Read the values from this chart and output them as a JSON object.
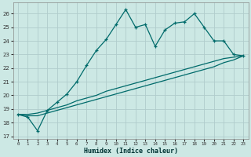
{
  "xlabel": "Humidex (Indice chaleur)",
  "background_color": "#cce8e4",
  "grid_color": "#b0cccc",
  "line_color": "#006b6b",
  "xlim": [
    -0.5,
    23.5
  ],
  "ylim": [
    16.8,
    26.8
  ],
  "yticks": [
    17,
    18,
    19,
    20,
    21,
    22,
    23,
    24,
    25,
    26
  ],
  "xticks": [
    0,
    1,
    2,
    3,
    4,
    5,
    6,
    7,
    8,
    9,
    10,
    11,
    12,
    13,
    14,
    15,
    16,
    17,
    18,
    19,
    20,
    21,
    22,
    23
  ],
  "jagged_x": [
    0,
    1,
    2,
    3,
    4,
    5,
    6,
    7,
    8,
    9,
    10,
    11,
    12,
    13,
    14,
    15,
    16,
    17,
    18,
    19,
    20,
    21,
    22,
    23
  ],
  "jagged_y": [
    18.6,
    18.4,
    17.4,
    18.9,
    19.5,
    20.1,
    21.0,
    22.2,
    23.3,
    24.1,
    25.2,
    26.3,
    25.0,
    25.2,
    23.6,
    24.8,
    25.3,
    25.4,
    26.0,
    25.0,
    24.0,
    24.0,
    23.0,
    22.9
  ],
  "smooth1_x": [
    0,
    1,
    2,
    3,
    4,
    5,
    6,
    7,
    8,
    9,
    10,
    11,
    12,
    13,
    14,
    15,
    16,
    17,
    18,
    19,
    20,
    21,
    22,
    23
  ],
  "smooth1_y": [
    18.6,
    18.6,
    18.7,
    18.9,
    19.1,
    19.3,
    19.6,
    19.8,
    20.0,
    20.3,
    20.5,
    20.7,
    20.9,
    21.1,
    21.3,
    21.5,
    21.7,
    21.9,
    22.1,
    22.3,
    22.5,
    22.7,
    22.8,
    22.9
  ],
  "smooth2_x": [
    0,
    1,
    2,
    3,
    4,
    5,
    6,
    7,
    8,
    9,
    10,
    11,
    12,
    13,
    14,
    15,
    16,
    17,
    18,
    19,
    20,
    21,
    22,
    23
  ],
  "smooth2_y": [
    18.6,
    18.5,
    18.5,
    18.7,
    18.9,
    19.1,
    19.3,
    19.5,
    19.7,
    19.9,
    20.1,
    20.3,
    20.5,
    20.7,
    20.9,
    21.1,
    21.3,
    21.5,
    21.7,
    21.9,
    22.1,
    22.4,
    22.6,
    22.9
  ]
}
